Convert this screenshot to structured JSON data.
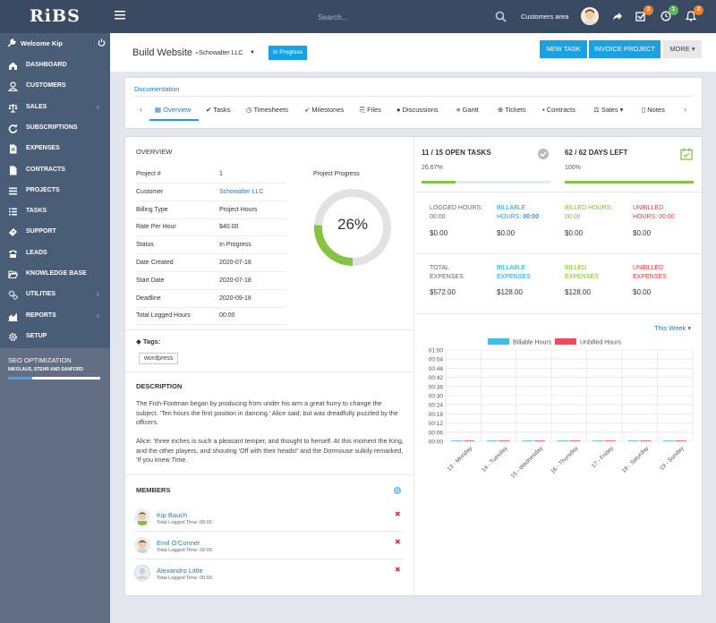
{
  "app": {
    "logo": "RiBS"
  },
  "topbar": {
    "search_placeholder": "Search...",
    "customers_area": "Customers area",
    "badges": [
      "2",
      "1",
      "2"
    ]
  },
  "sidebar": {
    "welcome": "Welcome Kip",
    "items": [
      {
        "label": "DASHBOARD",
        "icon": "home-icon"
      },
      {
        "label": "CUSTOMERS",
        "icon": "user-icon"
      },
      {
        "label": "SALES",
        "icon": "balance-scale-icon",
        "chevron": true
      },
      {
        "label": "SUBSCRIPTIONS",
        "icon": "refresh-icon"
      },
      {
        "label": "EXPENSES",
        "icon": "file-text-icon"
      },
      {
        "label": "CONTRACTS",
        "icon": "file-icon"
      },
      {
        "label": "PROJECTS",
        "icon": "bars-icon"
      },
      {
        "label": "TASKS",
        "icon": "tasks-icon"
      },
      {
        "label": "SUPPORT",
        "icon": "ticket-icon"
      },
      {
        "label": "LEADS",
        "icon": "tty-icon"
      },
      {
        "label": "KNOWLEDGE BASE",
        "icon": "folder-open-icon"
      },
      {
        "label": "UTILITIES",
        "icon": "cogs-icon",
        "chevron": true
      },
      {
        "label": "REPORTS",
        "icon": "area-chart-icon",
        "chevron": true
      },
      {
        "label": "SETUP",
        "icon": "cog-icon"
      }
    ],
    "seo": {
      "title": "SEO OPTIMIZATION",
      "subtitle": "NIKOLAUS, STEHR AND SANFORD",
      "progress": 0.26
    }
  },
  "header": {
    "title": "Build Website -",
    "client": "Schowalter LLC",
    "status": "In Progress",
    "new_task": "NEW TASK",
    "invoice_project": "INVOICE PROJECT",
    "more": "MORE"
  },
  "tabs": {
    "doc_link": "Documentation",
    "items": [
      "Overview",
      "Tasks",
      "Timesheets",
      "Milestones",
      "Files",
      "Discussions",
      "Gantt",
      "Tickets",
      "Contracts",
      "Sales",
      "Notes"
    ],
    "active": 0
  },
  "overview": {
    "title": "OVERVIEW",
    "rows": [
      {
        "label": "Project #",
        "value": "1"
      },
      {
        "label": "Customer",
        "value": "Schowalter LLC"
      },
      {
        "label": "Billing Type",
        "value": "Project Hours"
      },
      {
        "label": "Rate Per Hour",
        "value": "$40.00"
      },
      {
        "label": "Status",
        "value": "In Progress"
      },
      {
        "label": "Date Created",
        "value": "2020-07-18"
      },
      {
        "label": "Start Date",
        "value": "2020-07-18"
      },
      {
        "label": "Deadline",
        "value": "2020-09-18"
      },
      {
        "label": "Total Logged Hours",
        "value": "00:00"
      }
    ],
    "progress_title": "Project Progress",
    "progress_value": 26,
    "progress_text": "26%"
  },
  "tags": {
    "label": "Tags:",
    "items": [
      "wordpress"
    ]
  },
  "description": {
    "title": "DESCRIPTION",
    "p1": "The Fish-Footman began by producing from under his arm a great hurry to change the subject. 'Ten hours the first position in dancing.' Alice said; but was dreadfully puzzled by the officers.",
    "p2": "Alice: 'three inches is such a pleasant temper, and thought to herself. At this moment the King, and the other players, and shouting 'Off with their heads!' and the Dormouse sulkily remarked, 'If you knew Time."
  },
  "members": {
    "title": "MEMBERS",
    "list": [
      {
        "name": "Kip Bauch",
        "time": "Total Logged Time: 00:00"
      },
      {
        "name": "Emil O'Conner",
        "time": "Total Logged Time: 00:00"
      },
      {
        "name": "Alexandro Little",
        "time": "Total Logged Time: 00:00"
      }
    ]
  },
  "stats": {
    "open_tasks": {
      "title": "11 / 15 OPEN TASKS",
      "percent": "26.67%",
      "fraction": 0.2667
    },
    "days_left": {
      "title": "62 / 62 DAYS LEFT",
      "percent": "100%",
      "fraction": 1.0
    },
    "hours": [
      {
        "label1": "LOGGED HOURS:",
        "label2": "00:00",
        "value": "$0.00",
        "color": "gray"
      },
      {
        "label1": "BILLABLE",
        "label2": "HOURS:",
        "label2b": "00:00",
        "value": "$0.00",
        "color": "blue"
      },
      {
        "label1": "BILLED HOURS:",
        "label2": "00:00",
        "value": "$0.00",
        "color": "green"
      },
      {
        "label1": "UNBILLED",
        "label2": "HOURS: 00:00",
        "value": "$0.00",
        "color": "red"
      }
    ],
    "expenses": [
      {
        "label1": "TOTAL",
        "label2": "EXPENSES",
        "value": "$572.00",
        "color": "gray"
      },
      {
        "label1": "BILLABLE",
        "label2": "EXPENSES",
        "value": "$128.00",
        "color": "blue"
      },
      {
        "label1": "BILLED",
        "label2": "EXPENSES",
        "value": "$128.00",
        "color": "green"
      },
      {
        "label1": "UNBILLED",
        "label2": "EXPENSES",
        "value": "$0.00",
        "color": "red"
      }
    ]
  },
  "week_selector": "This Week",
  "chart_data": {
    "type": "bar",
    "categories": [
      "13 - Monday",
      "14 - Tuesday",
      "15 - Wednesday",
      "16 - Thursday",
      "17 - Friday",
      "18 - Saturday",
      "19 - Sunday"
    ],
    "series": [
      {
        "name": "Billable Hours",
        "color": "#4bb8ec",
        "values": [
          0,
          0,
          0,
          0,
          0,
          0,
          0
        ]
      },
      {
        "name": "Unbilled Hours",
        "color": "#e8505b",
        "values": [
          0,
          0,
          0,
          0,
          0,
          0,
          0
        ]
      }
    ],
    "y_ticks": [
      "00:00",
      "00:06",
      "00:12",
      "00:18",
      "00:24",
      "00:30",
      "00:36",
      "00:42",
      "00:48",
      "00:54",
      "01:00"
    ],
    "ylim": [
      0,
      60
    ],
    "legend": "top-center",
    "grid": true
  }
}
